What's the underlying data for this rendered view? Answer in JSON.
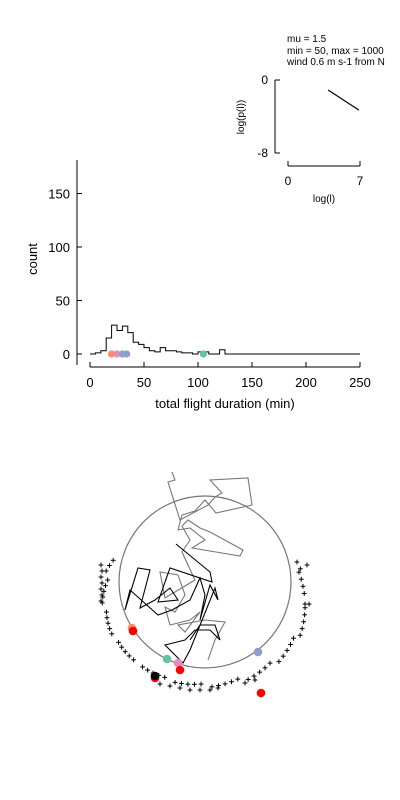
{
  "inset": {
    "params": [
      "mu = 1.5",
      "min = 50, max = 1000",
      "wind 0.6 m s-1 from N"
    ]
  },
  "chart_data": [
    {
      "type": "line",
      "xlabel": "log(l)",
      "ylabel": "log(p(l))",
      "xlim": [
        0,
        7
      ],
      "ylim": [
        -8,
        0
      ],
      "x_ticks": [
        0,
        7
      ],
      "y_ticks": [
        0,
        -8
      ],
      "series": [
        {
          "x": [
            3.9,
            6.9
          ],
          "y": [
            -1.1,
            -3.3
          ]
        }
      ]
    },
    {
      "type": "line",
      "xlabel": "total flight duration (min)",
      "ylabel": "count",
      "xlim": [
        0,
        250
      ],
      "ylim": [
        -5,
        180
      ],
      "x_ticks": [
        0,
        50,
        100,
        150,
        200,
        250
      ],
      "y_ticks": [
        0,
        50,
        100,
        150
      ],
      "histogram": {
        "bin_width": 5,
        "bin_starts": [
          0,
          5,
          10,
          15,
          20,
          25,
          30,
          35,
          40,
          45,
          50,
          55,
          60,
          65,
          70,
          75,
          80,
          85,
          90,
          95,
          100,
          105,
          110,
          115,
          120,
          125,
          130
        ],
        "counts": [
          0,
          1,
          3,
          15,
          27,
          22,
          26,
          20,
          11,
          9,
          6,
          3,
          2,
          6,
          3,
          3,
          2,
          1,
          1,
          0,
          2,
          2,
          0,
          0,
          4,
          0,
          0
        ]
      },
      "markers": [
        {
          "x": 20,
          "y": 0,
          "color": "#fc8d62"
        },
        {
          "x": 25,
          "y": 0,
          "color": "#e78ac3"
        },
        {
          "x": 30,
          "y": 0,
          "color": "#8da0cb"
        },
        {
          "x": 34,
          "y": 0,
          "color": "#8da0cb"
        },
        {
          "x": 105,
          "y": 0,
          "color": "#66c2a5"
        }
      ]
    }
  ],
  "map": {
    "endpoints": [
      {
        "color": "#fc8d62"
      },
      {
        "color": "#66c2a5"
      },
      {
        "color": "#e78ac3"
      },
      {
        "color": "#8da0cb"
      },
      {
        "color": "#ff0000"
      },
      {
        "color": "#ff0000"
      },
      {
        "color": "#ff0000"
      },
      {
        "color": "#ff0000"
      },
      {
        "color": "#000000"
      }
    ]
  }
}
